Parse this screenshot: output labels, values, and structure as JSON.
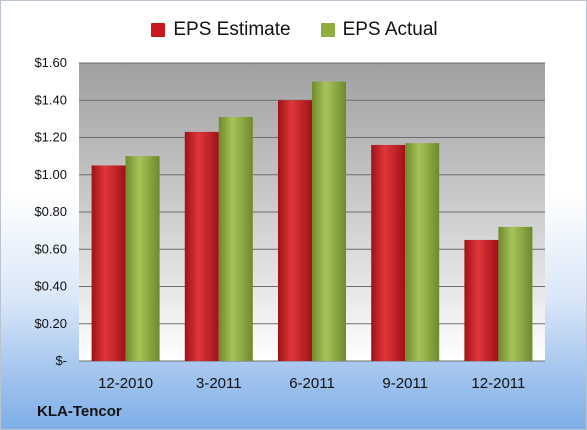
{
  "company": "KLA-Tencor",
  "colors": {
    "estimate": "#c9191f",
    "actual": "#8fae3f"
  },
  "chart_data": {
    "type": "bar",
    "categories": [
      "12-2010",
      "3-2011",
      "6-2011",
      "9-2011",
      "12-2011"
    ],
    "series": [
      {
        "name": "EPS Estimate",
        "values": [
          1.05,
          1.23,
          1.4,
          1.16,
          0.65
        ]
      },
      {
        "name": "EPS Actual",
        "values": [
          1.1,
          1.31,
          1.5,
          1.17,
          0.72
        ]
      }
    ],
    "ylim": [
      0,
      1.6
    ],
    "y_ticks": [
      0,
      0.2,
      0.4,
      0.6,
      0.8,
      1.0,
      1.2,
      1.4,
      1.6
    ],
    "y_tick_labels": [
      "$-",
      "$0.20",
      "$0.40",
      "$0.60",
      "$0.80",
      "$1.00",
      "$1.20",
      "$1.40",
      "$1.60"
    ],
    "legend_position": "top",
    "grid": true
  }
}
